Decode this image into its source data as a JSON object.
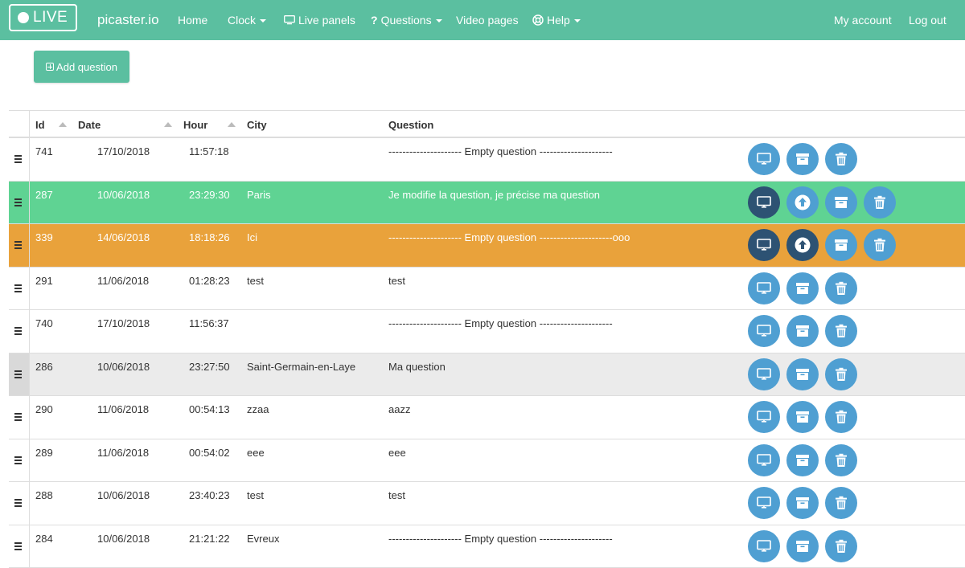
{
  "nav": {
    "live_label": "LIVE",
    "brand": "picaster.io",
    "home": "Home",
    "clock": "Clock",
    "live_panels": "Live panels",
    "questions": "Questions",
    "video_pages": "Video pages",
    "help": "Help",
    "my_account": "My account",
    "log_out": "Log out"
  },
  "toolbar": {
    "add_question_label": "Add question"
  },
  "table": {
    "headers": {
      "id": "Id",
      "date": "Date",
      "hour": "Hour",
      "city": "City",
      "question": "Question"
    },
    "rows": [
      {
        "id": "741",
        "date": "17/10/2018",
        "hour": "11:57:18",
        "city": "",
        "question": "--------------------- Empty question ---------------------",
        "state": "normal",
        "actions": [
          "display",
          "archive",
          "delete"
        ]
      },
      {
        "id": "287",
        "date": "10/06/2018",
        "hour": "23:29:30",
        "city": "Paris",
        "question": "Je modifie la question, je précise ma question",
        "state": "green",
        "actions": [
          "display-active",
          "upload",
          "archive",
          "delete"
        ]
      },
      {
        "id": "339",
        "date": "14/06/2018",
        "hour": "18:18:26",
        "city": "Ici",
        "question": "--------------------- Empty question ---------------------ooo",
        "state": "orange",
        "actions": [
          "display-active",
          "upload-active",
          "archive",
          "delete"
        ]
      },
      {
        "id": "291",
        "date": "11/06/2018",
        "hour": "01:28:23",
        "city": "test",
        "question": "test",
        "state": "normal",
        "actions": [
          "display",
          "archive",
          "delete"
        ]
      },
      {
        "id": "740",
        "date": "17/10/2018",
        "hour": "11:56:37",
        "city": "",
        "question": "--------------------- Empty question ---------------------",
        "state": "normal",
        "actions": [
          "display",
          "archive",
          "delete"
        ]
      },
      {
        "id": "286",
        "date": "10/06/2018",
        "hour": "23:27:50",
        "city": "Saint-Germain-en-Laye",
        "question": "Ma question",
        "state": "grey",
        "actions": [
          "display",
          "archive",
          "delete"
        ]
      },
      {
        "id": "290",
        "date": "11/06/2018",
        "hour": "00:54:13",
        "city": "zzaa",
        "question": "aazz",
        "state": "normal",
        "actions": [
          "display",
          "archive",
          "delete"
        ]
      },
      {
        "id": "289",
        "date": "11/06/2018",
        "hour": "00:54:02",
        "city": "eee",
        "question": "eee",
        "state": "normal",
        "actions": [
          "display",
          "archive",
          "delete"
        ]
      },
      {
        "id": "288",
        "date": "10/06/2018",
        "hour": "23:40:23",
        "city": "test",
        "question": "test",
        "state": "normal",
        "actions": [
          "display",
          "archive",
          "delete"
        ]
      },
      {
        "id": "284",
        "date": "10/06/2018",
        "hour": "21:21:22",
        "city": "Evreux",
        "question": "--------------------- Empty question ---------------------",
        "state": "normal",
        "actions": [
          "display",
          "archive",
          "delete"
        ]
      }
    ]
  },
  "colors": {
    "brand": "#5bbfa0",
    "action": "#4f9fd2",
    "action_active": "#2d5273",
    "row_green": "#5fd393",
    "row_orange": "#e9a23b",
    "row_grey": "#ebebeb"
  }
}
